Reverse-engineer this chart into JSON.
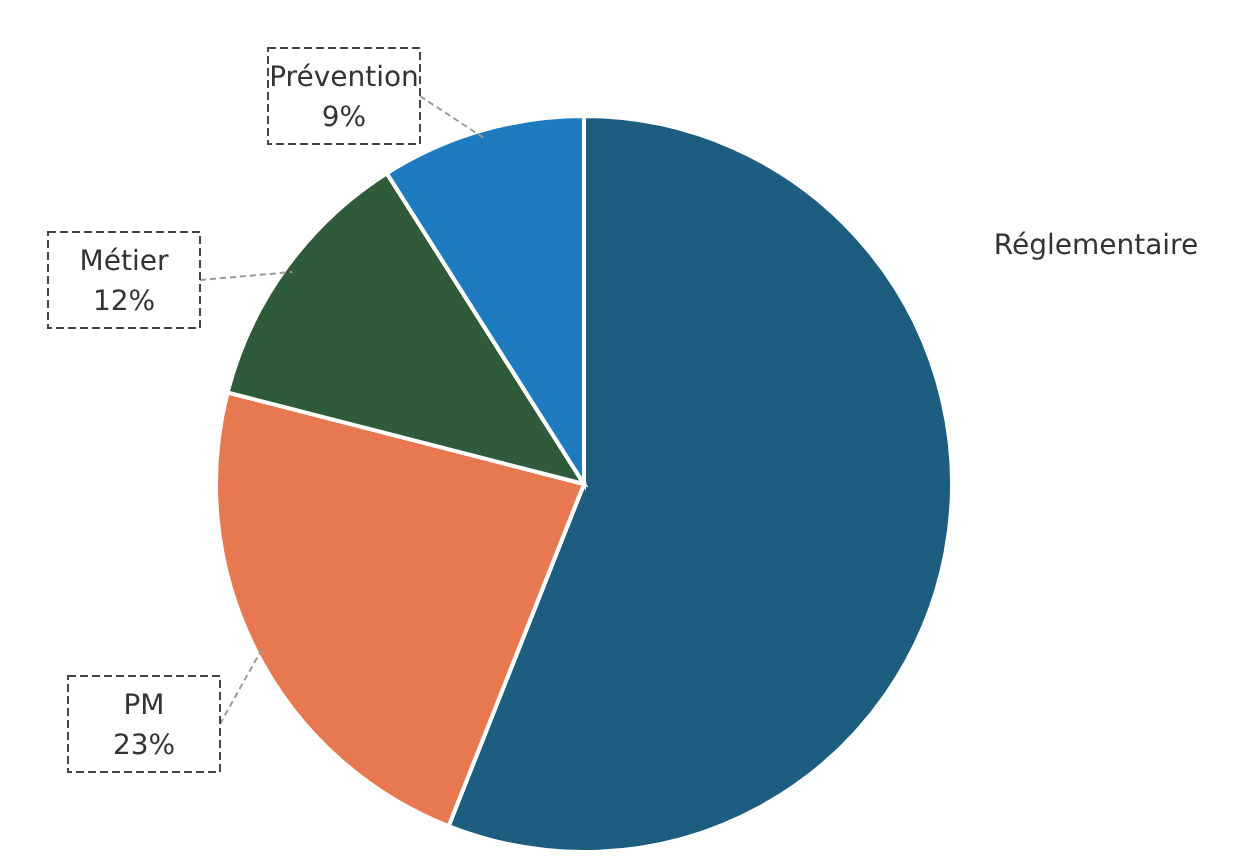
{
  "chart_data": {
    "type": "pie",
    "categories": [
      "Réglementaire",
      "PM",
      "Métier",
      "Prévention"
    ],
    "values": [
      56,
      23,
      12,
      9
    ],
    "colors": [
      "#1d5d80",
      "#e8784f",
      "#2f5b3b",
      "#1f7bbf"
    ],
    "value_labels": [
      null,
      "23%",
      "12%",
      "9%"
    ]
  }
}
